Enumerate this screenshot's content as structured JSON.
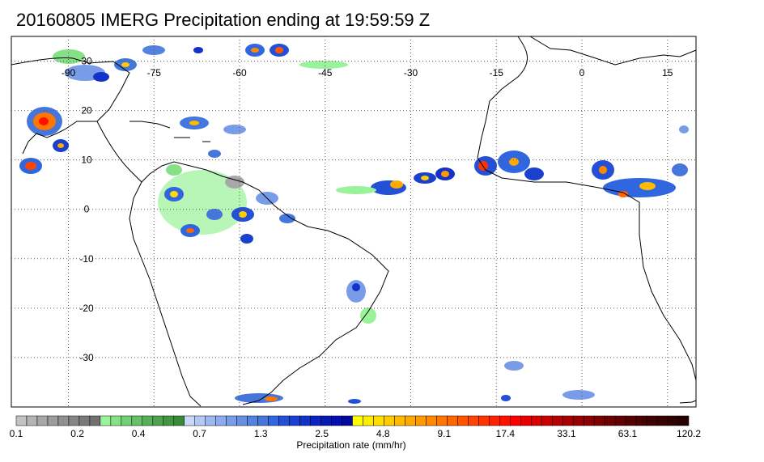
{
  "title": "20160805 IMERG Precipitation ending at 19:59:59 Z",
  "map": {
    "lon_labels": [
      "-90",
      "-75",
      "-60",
      "-45",
      "-30",
      "-15",
      "0",
      "15"
    ],
    "lat_labels": [
      "30",
      "20",
      "10",
      "0",
      "-10",
      "-20",
      "-30"
    ],
    "lon_values": [
      -90,
      -75,
      -60,
      -45,
      -30,
      -15,
      0,
      15
    ],
    "lat_values": [
      30,
      20,
      10,
      0,
      -10,
      -20,
      -30
    ],
    "lon_range": [
      -100,
      20
    ],
    "lat_range": [
      35,
      -40
    ],
    "grid": "dotted",
    "projection": "equirectangular"
  },
  "colorbar": {
    "title": "Precipitation rate (mm/hr)",
    "labels": [
      "0.1",
      "0.2",
      "0.4",
      "0.7",
      "1.3",
      "2.5",
      "4.8",
      "9.1",
      "17.4",
      "33.1",
      "63.1",
      "120.2"
    ],
    "colors": [
      "#c2c2c2",
      "#b5b5b5",
      "#a8a8a8",
      "#9c9c9c",
      "#909090",
      "#858585",
      "#7a7a7a",
      "#707070",
      "#9af29a",
      "#86e186",
      "#74d074",
      "#66c066",
      "#58b058",
      "#4da24d",
      "#429542",
      "#388a38",
      "#c8d8f8",
      "#b4c8f4",
      "#a0b8f0",
      "#8cacee",
      "#789ce8",
      "#6690e4",
      "#5482e0",
      "#4476dc",
      "#3066e0",
      "#2450d8",
      "#1a40d0",
      "#1232c8",
      "#0a22c0",
      "#0418b8",
      "#000eb0",
      "#0008a0",
      "#ffff00",
      "#ffee00",
      "#ffdd00",
      "#ffcc00",
      "#ffbb00",
      "#ffaa00",
      "#ff9900",
      "#ff8800",
      "#ff7700",
      "#ff6600",
      "#ff5500",
      "#ff4400",
      "#ff3300",
      "#ff2200",
      "#ff1100",
      "#ff0000",
      "#e80000",
      "#d80000",
      "#c80000",
      "#b80000",
      "#a80000",
      "#980000",
      "#8a0000",
      "#7c0000",
      "#6e0000",
      "#600000",
      "#540000",
      "#480000",
      "#3e0000",
      "#360000",
      "#2e0000",
      "#260000"
    ]
  }
}
